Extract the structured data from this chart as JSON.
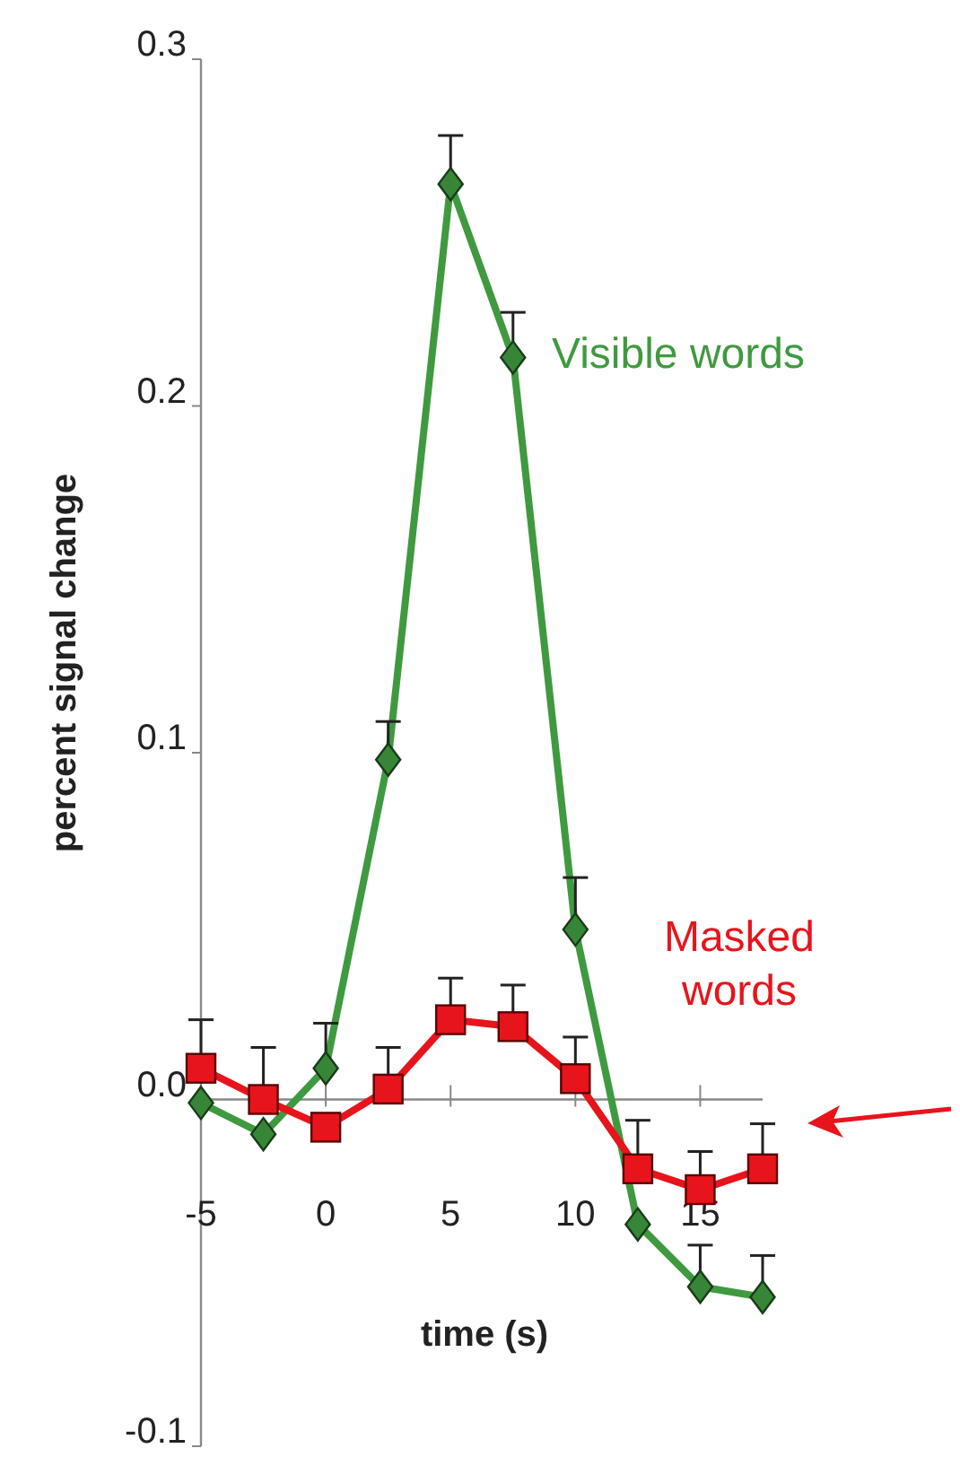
{
  "chart_data": {
    "type": "line",
    "xlabel": "time (s)",
    "ylabel": "percent signal change",
    "x": [
      -5,
      -2.5,
      0,
      2.5,
      5,
      7.5,
      10,
      12.5,
      15,
      17.5
    ],
    "xlim": [
      -5,
      17.5
    ],
    "xticks": [
      -5,
      0,
      5,
      10,
      15
    ],
    "ylim": [
      -0.1,
      0.3
    ],
    "yticks": [
      -0.1,
      {
        "value": 0,
        "label": "0.0"
      },
      0.1,
      0.2,
      0.3
    ],
    "series": [
      {
        "name": "Visible words",
        "color": "#3f9a3f",
        "marker": "diamond",
        "values": [
          -0.001,
          -0.01,
          0.009,
          0.098,
          0.264,
          0.214,
          0.049,
          -0.036,
          -0.054,
          -0.057
        ],
        "errors": [
          null,
          null,
          [
            0.009,
            0.022
          ],
          [
            0.098,
            0.109
          ],
          [
            0.264,
            0.278
          ],
          [
            0.214,
            0.227
          ],
          [
            0.049,
            0.064
          ],
          null,
          [
            -0.054,
            -0.042
          ],
          [
            -0.057,
            -0.045
          ]
        ]
      },
      {
        "name": "Masked words",
        "color": "#e8141c",
        "marker": "square",
        "values": [
          0.009,
          0.0,
          -0.008,
          0.003,
          0.023,
          0.021,
          0.006,
          -0.02,
          -0.026,
          -0.02
        ],
        "errors": [
          [
            0.009,
            0.023
          ],
          [
            0.0,
            0.015
          ],
          null,
          [
            0.003,
            0.015
          ],
          [
            0.023,
            0.035
          ],
          [
            0.021,
            0.033
          ],
          [
            0.006,
            0.018
          ],
          [
            -0.02,
            -0.006
          ],
          [
            -0.026,
            -0.015
          ],
          [
            -0.02,
            -0.007
          ]
        ]
      }
    ],
    "line_style": "solid"
  }
}
